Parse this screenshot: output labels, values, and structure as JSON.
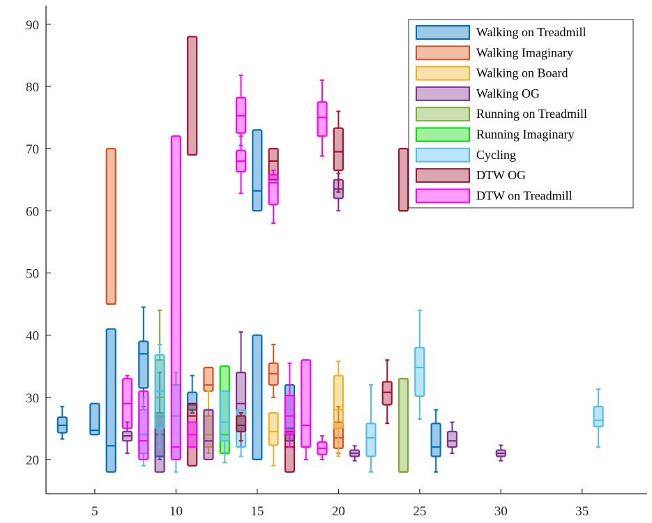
{
  "chart_data": {
    "type": "box",
    "title": "",
    "xlabel": "",
    "ylabel": "",
    "xlim": [
      2,
      39
    ],
    "ylim": [
      14.5,
      93
    ],
    "xticks": [
      "5",
      "10",
      "15",
      "20",
      "25",
      "30",
      "35"
    ],
    "yticks": [
      "20",
      "30",
      "40",
      "50",
      "60",
      "70",
      "80",
      "90"
    ],
    "grid": false,
    "legend_position": "top-right",
    "series": [
      {
        "name": "Walking on Treadmill",
        "color": "#0072BD",
        "boxes": [
          {
            "x": 3,
            "q1": 24.3,
            "median": 25.5,
            "q3": 26.8,
            "whisker_low": 23.3,
            "whisker_high": 28.5
          },
          {
            "x": 5,
            "q1": 24.0,
            "median": 24.7,
            "q3": 29.0,
            "whisker_low": 24.0,
            "whisker_high": 29.0
          },
          {
            "x": 6,
            "q1": 18.0,
            "median": 22.2,
            "q3": 41.0,
            "whisker_low": 18.0,
            "whisker_high": 41.0
          },
          {
            "x": 8,
            "q1": 31.5,
            "median": 37.0,
            "q3": 39.0,
            "whisker_low": 28.5,
            "whisker_high": 44.5
          },
          {
            "x": 9,
            "q1": 20.5,
            "median": 24.0,
            "q3": 27.5,
            "whisker_low": 20.0,
            "whisker_high": 34.0
          },
          {
            "x": 11,
            "q1": 28.0,
            "median": 28.8,
            "q3": 30.8,
            "whisker_low": 27.5,
            "whisker_high": 33.5
          },
          {
            "x": 15,
            "q1": 60.0,
            "median": 63.2,
            "q3": 73.0,
            "whisker_low": 60.0,
            "whisker_high": 73.0
          },
          {
            "x": 15,
            "q1": 20.0,
            "median": 20.0,
            "q3": 40.0,
            "whisker_low": 20.0,
            "whisker_high": 40.0
          },
          {
            "x": 17,
            "q1": 23.0,
            "median": 25.0,
            "q3": 32.0,
            "whisker_low": 22.0,
            "whisker_high": 32.0
          },
          {
            "x": 26,
            "q1": 20.5,
            "median": 22.0,
            "q3": 25.8,
            "whisker_low": 18.0,
            "whisker_high": 28.0
          }
        ]
      },
      {
        "name": "Walking Imaginary",
        "color": "#D95319",
        "boxes": [
          {
            "x": 6,
            "q1": 45.0,
            "median": 45.0,
            "q3": 70.0,
            "whisker_low": 45.0,
            "whisker_high": 70.0
          },
          {
            "x": 12,
            "q1": 31.0,
            "median": 32.0,
            "q3": 34.8,
            "whisker_low": 31.0,
            "whisker_high": 34.8
          },
          {
            "x": 16,
            "q1": 32.0,
            "median": 33.8,
            "q3": 35.5,
            "whisker_low": 30.0,
            "whisker_high": 38.5
          },
          {
            "x": 20,
            "q1": 21.8,
            "median": 23.5,
            "q3": 26.0,
            "whisker_low": 21.0,
            "whisker_high": 28.5
          }
        ]
      },
      {
        "name": "Walking on Board",
        "color": "#EDB120",
        "boxes": [
          {
            "x": 12,
            "q1": 22.0,
            "median": 24.0,
            "q3": 27.0,
            "whisker_low": 21.0,
            "whisker_high": 31.0
          },
          {
            "x": 16,
            "q1": 22.3,
            "median": 24.5,
            "q3": 27.5,
            "whisker_low": 19.0,
            "whisker_high": 27.5
          },
          {
            "x": 20,
            "q1": 25.0,
            "median": 28.0,
            "q3": 33.5,
            "whisker_low": 20.5,
            "whisker_high": 35.8
          }
        ]
      },
      {
        "name": "Walking OG",
        "color": "#7E2F8E",
        "boxes": [
          {
            "x": 7,
            "q1": 23.0,
            "median": 23.8,
            "q3": 24.5,
            "whisker_low": 21.0,
            "whisker_high": 26.0
          },
          {
            "x": 9,
            "q1": 18.0,
            "median": 27.0,
            "q3": 27.0,
            "whisker_low": 18.0,
            "whisker_high": 27.0
          },
          {
            "x": 12,
            "q1": 20.0,
            "median": 23.0,
            "q3": 28.0,
            "whisker_low": 20.0,
            "whisker_high": 28.0
          },
          {
            "x": 14,
            "q1": 24.5,
            "median": 29.0,
            "q3": 34.0,
            "whisker_low": 22.0,
            "whisker_high": 40.5
          },
          {
            "x": 20,
            "q1": 62.0,
            "median": 63.5,
            "q3": 65.0,
            "whisker_low": 60.0,
            "whisker_high": 66.0
          },
          {
            "x": 21,
            "q1": 20.5,
            "median": 21.0,
            "q3": 21.5,
            "whisker_low": 19.8,
            "whisker_high": 22.2
          },
          {
            "x": 27,
            "q1": 22.0,
            "median": 23.0,
            "q3": 24.5,
            "whisker_low": 21.0,
            "whisker_high": 26.0
          },
          {
            "x": 30,
            "q1": 20.5,
            "median": 21.0,
            "q3": 21.5,
            "whisker_low": 19.8,
            "whisker_high": 22.3
          }
        ]
      },
      {
        "name": "Running on Treadmill",
        "color": "#77AC30",
        "boxes": [
          {
            "x": 9,
            "q1": 27.0,
            "median": 30.0,
            "q3": 36.0,
            "whisker_low": 24.0,
            "whisker_high": 44.0
          },
          {
            "x": 24,
            "q1": 18.0,
            "median": 18.0,
            "q3": 33.0,
            "whisker_low": 18.0,
            "whisker_high": 33.0
          }
        ]
      },
      {
        "name": "Running Imaginary",
        "color": "#00DD00",
        "boxes": [
          {
            "x": 13,
            "q1": 21.0,
            "median": 24.0,
            "q3": 35.0,
            "whisker_low": 21.0,
            "whisker_high": 35.0
          }
        ]
      },
      {
        "name": "Cycling",
        "color": "#4DBEEE",
        "boxes": [
          {
            "x": 8,
            "q1": 21.0,
            "median": 24.0,
            "q3": 28.0,
            "whisker_low": 19.0,
            "whisker_high": 30.0
          },
          {
            "x": 9,
            "q1": 25.0,
            "median": 31.0,
            "q3": 36.8,
            "whisker_low": 22.0,
            "whisker_high": 38.5
          },
          {
            "x": 10,
            "q1": 20.0,
            "median": 27.0,
            "q3": 32.0,
            "whisker_low": 18.0,
            "whisker_high": 34.0
          },
          {
            "x": 13,
            "q1": 23.0,
            "median": 26.0,
            "q3": 31.0,
            "whisker_low": 19.5,
            "whisker_high": 31.0
          },
          {
            "x": 14,
            "q1": 22.0,
            "median": 25.0,
            "q3": 28.0,
            "whisker_low": 20.5,
            "whisker_high": 28.0
          },
          {
            "x": 22,
            "q1": 20.5,
            "median": 23.5,
            "q3": 25.8,
            "whisker_low": 18.0,
            "whisker_high": 32.0
          },
          {
            "x": 25,
            "q1": 30.2,
            "median": 34.8,
            "q3": 38.0,
            "whisker_low": 26.5,
            "whisker_high": 44.0
          },
          {
            "x": 36,
            "q1": 25.3,
            "median": 26.3,
            "q3": 28.5,
            "whisker_low": 22.0,
            "whisker_high": 31.3
          }
        ]
      },
      {
        "name": "DTW OG",
        "color": "#A2142F",
        "boxes": [
          {
            "x": 11,
            "q1": 69.0,
            "median": 69.0,
            "q3": 88.0,
            "whisker_low": 69.0,
            "whisker_high": 88.0
          },
          {
            "x": 11,
            "q1": 19.0,
            "median": 27.0,
            "q3": 29.0,
            "whisker_low": 19.0,
            "whisker_high": 29.0
          },
          {
            "x": 14,
            "q1": 24.5,
            "median": 25.5,
            "q3": 27.0,
            "whisker_low": 23.0,
            "whisker_high": 27.5
          },
          {
            "x": 16,
            "q1": 65.0,
            "median": 68.0,
            "q3": 70.0,
            "whisker_low": 65.0,
            "whisker_high": 70.0
          },
          {
            "x": 17,
            "q1": 18.0,
            "median": 22.0,
            "q3": 24.5,
            "whisker_low": 18.0,
            "whisker_high": 24.5
          },
          {
            "x": 20,
            "q1": 66.5,
            "median": 69.5,
            "q3": 73.3,
            "whisker_low": 63.0,
            "whisker_high": 76.0
          },
          {
            "x": 23,
            "q1": 28.8,
            "median": 30.8,
            "q3": 32.5,
            "whisker_low": 25.8,
            "whisker_high": 36.0
          },
          {
            "x": 24,
            "q1": 60.0,
            "median": 60.0,
            "q3": 70.0,
            "whisker_low": 60.0,
            "whisker_high": 70.0
          }
        ]
      },
      {
        "name": "DTW on Treadmill",
        "color": "#FF00FF",
        "boxes": [
          {
            "x": 7,
            "q1": 25.0,
            "median": 29.0,
            "q3": 33.0,
            "whisker_low": 25.0,
            "whisker_high": 33.5
          },
          {
            "x": 8,
            "q1": 20.0,
            "median": 23.0,
            "q3": 31.0,
            "whisker_low": 20.0,
            "whisker_high": 31.0
          },
          {
            "x": 10,
            "q1": 20.0,
            "median": 22.0,
            "q3": 72.0,
            "whisker_low": 20.0,
            "whisker_high": 72.0
          },
          {
            "x": 11,
            "q1": 22.0,
            "median": 24.0,
            "q3": 26.0,
            "whisker_low": 22.0,
            "whisker_high": 26.0
          },
          {
            "x": 14,
            "q1": 72.5,
            "median": 75.3,
            "q3": 78.2,
            "whisker_low": 70.5,
            "whisker_high": 81.8
          },
          {
            "x": 14,
            "q1": 66.3,
            "median": 68.0,
            "q3": 69.7,
            "whisker_low": 62.8,
            "whisker_high": 72.0
          },
          {
            "x": 16,
            "q1": 61.0,
            "median": 64.5,
            "q3": 65.8,
            "whisker_low": 58.0,
            "whisker_high": 66.5
          },
          {
            "x": 17,
            "q1": 24.0,
            "median": 27.0,
            "q3": 30.3,
            "whisker_low": 22.0,
            "whisker_high": 35.5
          },
          {
            "x": 18,
            "q1": 22.0,
            "median": 25.5,
            "q3": 36.0,
            "whisker_low": 20.0,
            "whisker_high": 36.0
          },
          {
            "x": 19,
            "q1": 72.0,
            "median": 75.0,
            "q3": 77.5,
            "whisker_low": 68.8,
            "whisker_high": 81.0
          },
          {
            "x": 19,
            "q1": 20.8,
            "median": 21.8,
            "q3": 22.8,
            "whisker_low": 20.0,
            "whisker_high": 23.8
          }
        ]
      }
    ]
  }
}
